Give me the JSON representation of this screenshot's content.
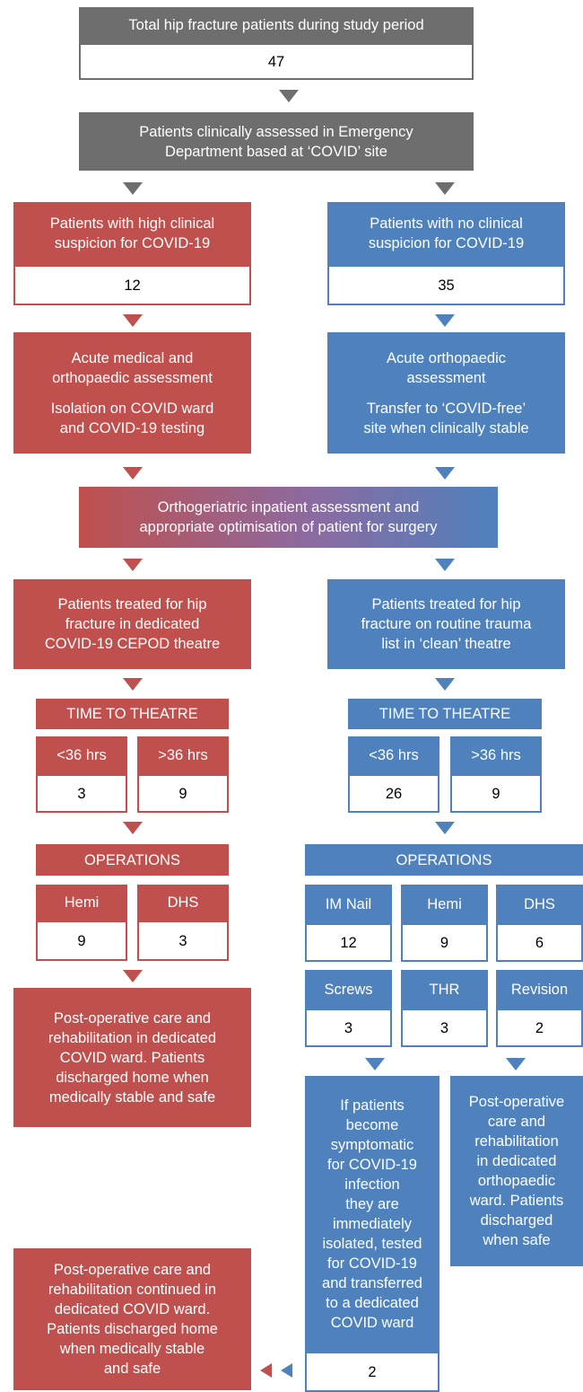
{
  "total": {
    "label": "Total hip fracture patients during study period",
    "count": 47
  },
  "ed": {
    "lines": [
      "Patients clinically assessed in Emergency",
      "Department based at ‘COVID’ site"
    ]
  },
  "covid": {
    "suspicion": {
      "lines": [
        "Patients with high clinical",
        "suspicion for COVID-19"
      ],
      "count": 12
    },
    "assessment": {
      "lines": [
        "Acute medical and",
        "orthopaedic assessment"
      ],
      "note": [
        "Isolation on COVID ward",
        "and COVID-19 testing"
      ]
    },
    "treatment": [
      "Patients treated for hip",
      "fracture in dedicated",
      "COVID-19 CEPOD theatre"
    ],
    "time": {
      "title": "TIME TO THEATRE",
      "groups": [
        {
          "label": "<36 hrs",
          "count": 3
        },
        {
          "label": ">36 hrs",
          "count": 9
        }
      ]
    },
    "operations": {
      "title": "OPERATIONS",
      "groups": [
        {
          "label": "Hemi",
          "count": 9
        },
        {
          "label": "DHS",
          "count": 3
        }
      ]
    },
    "postop": [
      "Post-operative care and",
      "rehabilitation in dedicated",
      "COVID ward. Patients",
      "discharged home when",
      "medically stable and safe"
    ],
    "continued": [
      "Post-operative care and",
      "rehabilitation continued in",
      "dedicated COVID ward.",
      "Patients discharged home",
      "when medically stable",
      "and safe"
    ]
  },
  "clean": {
    "suspicion": {
      "lines": [
        "Patients with no clinical",
        "suspicion for COVID-19"
      ],
      "count": 35
    },
    "assessment": {
      "lines": [
        "Acute orthopaedic",
        "assessment"
      ],
      "note": [
        "Transfer to ‘COVID-free’",
        "site when clinically stable"
      ]
    },
    "treatment": [
      "Patients treated for hip",
      "fracture on routine trauma",
      "list in ‘clean’ theatre"
    ],
    "time": {
      "title": "TIME TO THEATRE",
      "groups": [
        {
          "label": "<36 hrs",
          "count": 26
        },
        {
          "label": ">36 hrs",
          "count": 9
        }
      ]
    },
    "operations": {
      "title": "OPERATIONS",
      "groups": [
        {
          "label": "IM Nail",
          "count": 12
        },
        {
          "label": "Hemi",
          "count": 9
        },
        {
          "label": "DHS",
          "count": 6
        },
        {
          "label": "Screws",
          "count": 3
        },
        {
          "label": "THR",
          "count": 3
        },
        {
          "label": "Revision",
          "count": 2
        }
      ]
    },
    "infection": {
      "lines": [
        "If patients",
        "become",
        "symptomatic",
        "for COVID-19",
        "infection",
        "they are",
        "immediately",
        "isolated, tested",
        "for COVID-19",
        "and transferred",
        "to a dedicated",
        "COVID ward"
      ],
      "count": 2
    },
    "postop": [
      "Post-operative",
      "care and",
      "rehabilitation",
      "in dedicated",
      "orthopaedic",
      "ward. Patients",
      "discharged",
      "when safe"
    ]
  },
  "shared": {
    "lines": [
      "Orthogeriatric inpatient assessment and",
      "appropriate optimisation of patient for surgery"
    ]
  }
}
